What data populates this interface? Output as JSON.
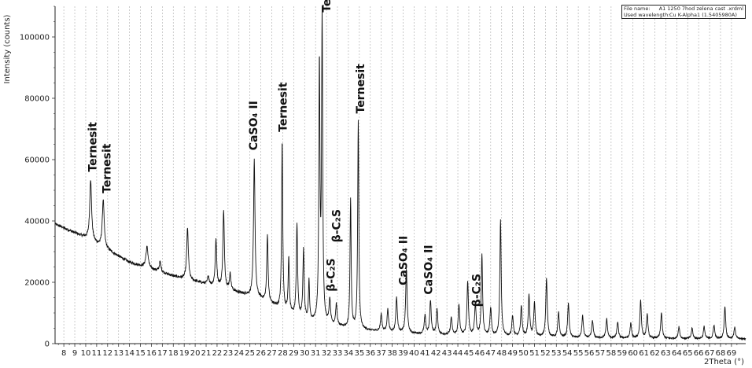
{
  "chart_data": {
    "type": "line",
    "xlabel": "2Theta (°)",
    "ylabel": "Intensity (counts)",
    "xlim": [
      7.2,
      70.3
    ],
    "ylim": [
      0,
      110000
    ],
    "x_ticks": [
      8,
      9,
      10,
      11,
      12,
      13,
      14,
      15,
      16,
      17,
      18,
      19,
      20,
      21,
      22,
      23,
      24,
      25,
      26,
      27,
      28,
      29,
      30,
      31,
      32,
      33,
      34,
      35,
      36,
      37,
      38,
      39,
      40,
      41,
      42,
      43,
      44,
      45,
      46,
      47,
      48,
      49,
      50,
      51,
      52,
      53,
      54,
      55,
      56,
      57,
      58,
      59,
      60,
      61,
      62,
      63,
      64,
      65,
      66,
      67,
      68,
      69
    ],
    "y_ticks": [
      {
        "value": 0,
        "label": "0"
      },
      {
        "value": 20000,
        "label": "20000"
      },
      {
        "value": 40000,
        "label": "40000"
      },
      {
        "value": 60000,
        "label": "60000"
      },
      {
        "value": 80000,
        "label": "80000"
      },
      {
        "value": 100000,
        "label": "100000"
      }
    ],
    "grid": "vertical dashed",
    "background": {
      "x": [
        7.2,
        10,
        14,
        18,
        22,
        26,
        30,
        33,
        36,
        40,
        45,
        50,
        55,
        60,
        65,
        70.3
      ],
      "y": [
        39000,
        34500,
        26500,
        22000,
        18500,
        14500,
        7500,
        5500,
        4200,
        3200,
        2600,
        2200,
        1900,
        1700,
        1600,
        1500
      ]
    },
    "peaks": [
      {
        "x": 10.45,
        "y": 53500,
        "w": 0.1
      },
      {
        "x": 11.6,
        "y": 47000,
        "w": 0.1
      },
      {
        "x": 15.6,
        "y": 31500,
        "w": 0.12
      },
      {
        "x": 16.8,
        "y": 26500,
        "w": 0.1
      },
      {
        "x": 19.3,
        "y": 37500,
        "w": 0.09
      },
      {
        "x": 21.2,
        "y": 22000,
        "w": 0.08
      },
      {
        "x": 21.9,
        "y": 33500,
        "w": 0.08
      },
      {
        "x": 22.6,
        "y": 43000,
        "w": 0.08
      },
      {
        "x": 23.2,
        "y": 22500,
        "w": 0.08
      },
      {
        "x": 23.6,
        "y": 17000,
        "w": 0.08
      },
      {
        "x": 24.7,
        "y": 16000,
        "w": 0.08
      },
      {
        "x": 25.4,
        "y": 60000,
        "w": 0.08
      },
      {
        "x": 26.6,
        "y": 35500,
        "w": 0.07
      },
      {
        "x": 27.95,
        "y": 66000,
        "w": 0.06
      },
      {
        "x": 28.55,
        "y": 28000,
        "w": 0.06
      },
      {
        "x": 29.3,
        "y": 38500,
        "w": 0.07
      },
      {
        "x": 29.9,
        "y": 30500,
        "w": 0.07
      },
      {
        "x": 30.4,
        "y": 20000,
        "w": 0.06
      },
      {
        "x": 31.35,
        "y": 90000,
        "w": 0.06
      },
      {
        "x": 31.6,
        "y": 105000,
        "w": 0.06
      },
      {
        "x": 32.3,
        "y": 14000,
        "w": 0.08
      },
      {
        "x": 32.9,
        "y": 12500,
        "w": 0.08
      },
      {
        "x": 34.2,
        "y": 47000,
        "w": 0.06
      },
      {
        "x": 34.9,
        "y": 72500,
        "w": 0.06
      },
      {
        "x": 37.0,
        "y": 9500,
        "w": 0.08
      },
      {
        "x": 37.6,
        "y": 11000,
        "w": 0.08
      },
      {
        "x": 38.4,
        "y": 15000,
        "w": 0.08
      },
      {
        "x": 39.3,
        "y": 24000,
        "w": 0.08
      },
      {
        "x": 41.0,
        "y": 9000,
        "w": 0.08
      },
      {
        "x": 41.5,
        "y": 14000,
        "w": 0.08
      },
      {
        "x": 42.1,
        "y": 11000,
        "w": 0.08
      },
      {
        "x": 43.4,
        "y": 8500,
        "w": 0.08
      },
      {
        "x": 44.1,
        "y": 12500,
        "w": 0.08
      },
      {
        "x": 44.9,
        "y": 20000,
        "w": 0.08
      },
      {
        "x": 45.6,
        "y": 13000,
        "w": 0.08
      },
      {
        "x": 46.2,
        "y": 29000,
        "w": 0.07
      },
      {
        "x": 47.0,
        "y": 11500,
        "w": 0.08
      },
      {
        "x": 47.9,
        "y": 40500,
        "w": 0.07
      },
      {
        "x": 49.0,
        "y": 9000,
        "w": 0.08
      },
      {
        "x": 49.8,
        "y": 12000,
        "w": 0.08
      },
      {
        "x": 50.5,
        "y": 15500,
        "w": 0.08
      },
      {
        "x": 51.0,
        "y": 13000,
        "w": 0.08
      },
      {
        "x": 52.1,
        "y": 21000,
        "w": 0.08
      },
      {
        "x": 53.2,
        "y": 10000,
        "w": 0.08
      },
      {
        "x": 54.1,
        "y": 13000,
        "w": 0.08
      },
      {
        "x": 55.4,
        "y": 9000,
        "w": 0.08
      },
      {
        "x": 56.3,
        "y": 7500,
        "w": 0.08
      },
      {
        "x": 57.6,
        "y": 8000,
        "w": 0.08
      },
      {
        "x": 58.6,
        "y": 7000,
        "w": 0.08
      },
      {
        "x": 59.8,
        "y": 6500,
        "w": 0.08
      },
      {
        "x": 60.7,
        "y": 14000,
        "w": 0.08
      },
      {
        "x": 61.3,
        "y": 9500,
        "w": 0.08
      },
      {
        "x": 62.6,
        "y": 10000,
        "w": 0.08
      },
      {
        "x": 64.2,
        "y": 5500,
        "w": 0.08
      },
      {
        "x": 65.4,
        "y": 5000,
        "w": 0.08
      },
      {
        "x": 66.5,
        "y": 5500,
        "w": 0.08
      },
      {
        "x": 67.4,
        "y": 6000,
        "w": 0.08
      },
      {
        "x": 68.4,
        "y": 12000,
        "w": 0.08
      },
      {
        "x": 69.3,
        "y": 5500,
        "w": 0.08
      }
    ],
    "annotations": [
      {
        "text": "Ternesit",
        "x": 10.6,
        "y": 56000,
        "vertical": true
      },
      {
        "text": "Ternesit",
        "x": 11.9,
        "y": 49000,
        "vertical": true
      },
      {
        "text": "CaSO₄ II",
        "x": 25.3,
        "y": 63000,
        "vertical": true
      },
      {
        "text": "Ternesit",
        "x": 28.0,
        "y": 69000,
        "vertical": true
      },
      {
        "text": "Ternesit",
        "x": 32.0,
        "y": 108000,
        "vertical": true
      },
      {
        "text": "β-C₂S",
        "x": 32.9,
        "y": 33000,
        "vertical": true
      },
      {
        "text": "β-C₂S",
        "x": 32.4,
        "y": 17000,
        "vertical": true
      },
      {
        "text": "Ternesit",
        "x": 35.1,
        "y": 75000,
        "vertical": true
      },
      {
        "text": "CaSO₄ II",
        "x": 39.0,
        "y": 19000,
        "vertical": true
      },
      {
        "text": "CaSO₄ II",
        "x": 41.3,
        "y": 16000,
        "vertical": true
      },
      {
        "text": "β-C₂S",
        "x": 45.7,
        "y": 12000,
        "vertical": true
      }
    ],
    "legend": "top-right",
    "info": [
      {
        "key": "File name:",
        "value": "A1 1250 7hod zelena cast .xrdml"
      },
      {
        "key": "Used wavelength:",
        "value": "Cu K-Alpha1 (1.5405980A)"
      }
    ]
  }
}
